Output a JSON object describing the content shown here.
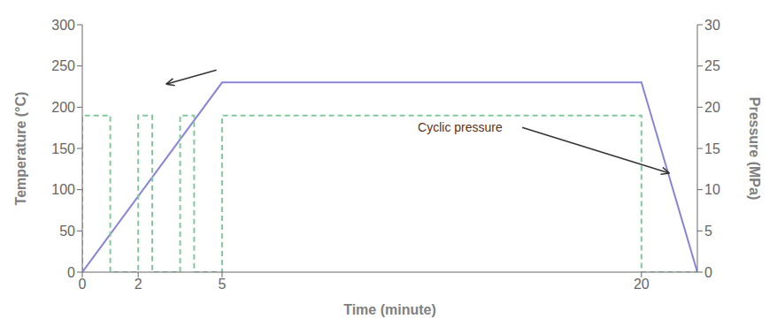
{
  "chart_data": {
    "type": "line",
    "x_label": "Time (minute)",
    "y_label": "Temperature (°C)",
    "y2_label": "Pressure (MPa)",
    "xlim": [
      0,
      22
    ],
    "xticks": [
      0,
      2,
      5,
      20
    ],
    "ylim": [
      0,
      300
    ],
    "yticks": [
      0,
      50,
      100,
      150,
      200,
      250,
      300
    ],
    "y2lim": [
      0,
      30
    ],
    "y2ticks": [
      0,
      5,
      10,
      15,
      20,
      25,
      30
    ],
    "grid": false,
    "series": [
      {
        "x": [
          0,
          5,
          20,
          22
        ],
        "values": [
          0,
          230,
          230,
          0
        ],
        "line_style": "solid"
      },
      {
        "x": [
          0,
          0,
          1,
          1,
          2,
          2,
          2.5,
          2.5,
          3.5,
          3.5,
          4,
          4,
          5,
          5,
          20,
          20,
          22
        ],
        "values": [
          0,
          19,
          19,
          0,
          0,
          19,
          19,
          0,
          0,
          19,
          19,
          0,
          0,
          19,
          19,
          0,
          0
        ],
        "axis": "y2",
        "line_style": "dashed"
      }
    ],
    "annotations": [
      {
        "x": 4.8,
        "y": 245,
        "arrow_x": 3.0,
        "arrow_y": 228
      },
      {
        "text": "Cyclic pressure",
        "x": 12.0,
        "y": 170,
        "arrow_x": 21.0,
        "arrow_y": 120,
        "color": "#5C3317"
      }
    ]
  }
}
